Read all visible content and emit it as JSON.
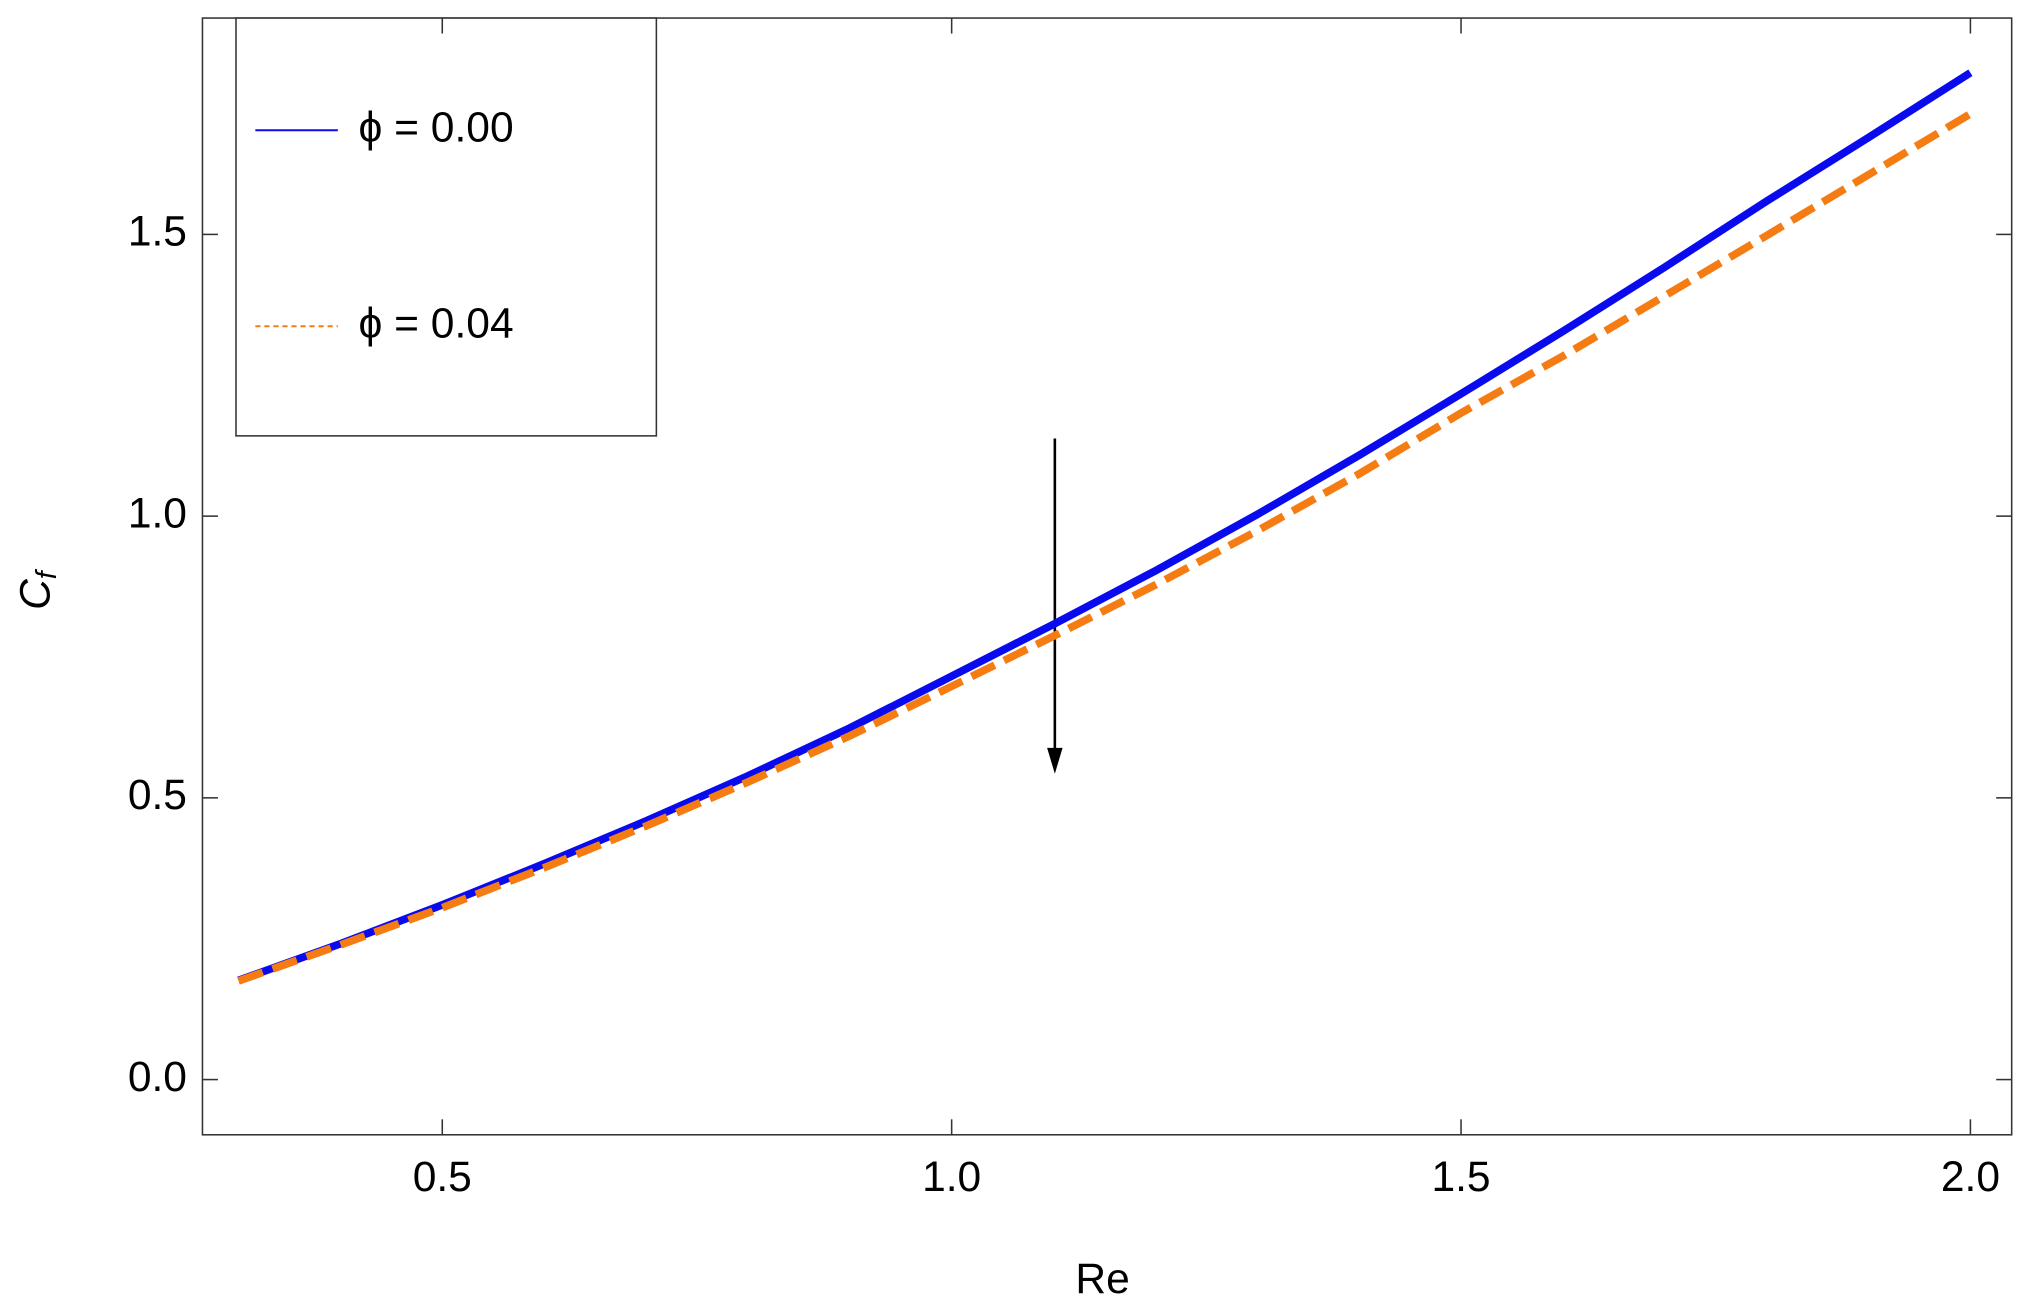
{
  "chart_data": {
    "type": "line",
    "xlabel": "Re",
    "ylabel": {
      "main": "C",
      "sub": "f"
    },
    "x": [
      0.3,
      0.4,
      0.5,
      0.6,
      0.7,
      0.8,
      0.9,
      1.0,
      1.1,
      1.2,
      1.3,
      1.4,
      1.5,
      1.6,
      1.7,
      1.8,
      1.9,
      2.0
    ],
    "series": [
      {
        "name": "ϕ = 0.00",
        "color": "#0a0aef",
        "dash": false,
        "values": [
          0.176,
          0.241,
          0.31,
          0.383,
          0.459,
          0.539,
          0.624,
          0.716,
          0.808,
          0.903,
          1.003,
          1.108,
          1.217,
          1.328,
          1.442,
          1.559,
          1.672,
          1.787
        ]
      },
      {
        "name": "ϕ = 0.04",
        "color": "#f57c12",
        "dash": true,
        "values": [
          0.175,
          0.239,
          0.305,
          0.376,
          0.45,
          0.528,
          0.61,
          0.698,
          0.787,
          0.878,
          0.974,
          1.075,
          1.183,
          1.284,
          1.391,
          1.498,
          1.606,
          1.714
        ]
      }
    ],
    "xlim": [
      0.2646,
      2.0405
    ],
    "ylim": [
      -0.098,
      1.884
    ],
    "xticks": [
      {
        "value": 0.5,
        "label": "0.5"
      },
      {
        "value": 1.0,
        "label": "1.0"
      },
      {
        "value": 1.5,
        "label": "1.5"
      },
      {
        "value": 2.0,
        "label": "2.0"
      }
    ],
    "yticks": [
      {
        "value": 0.0,
        "label": "0.0"
      },
      {
        "value": 0.5,
        "label": "0.5"
      },
      {
        "value": 1.0,
        "label": "1.0"
      },
      {
        "value": 1.5,
        "label": "1.5"
      }
    ],
    "legend": "upper left"
  }
}
